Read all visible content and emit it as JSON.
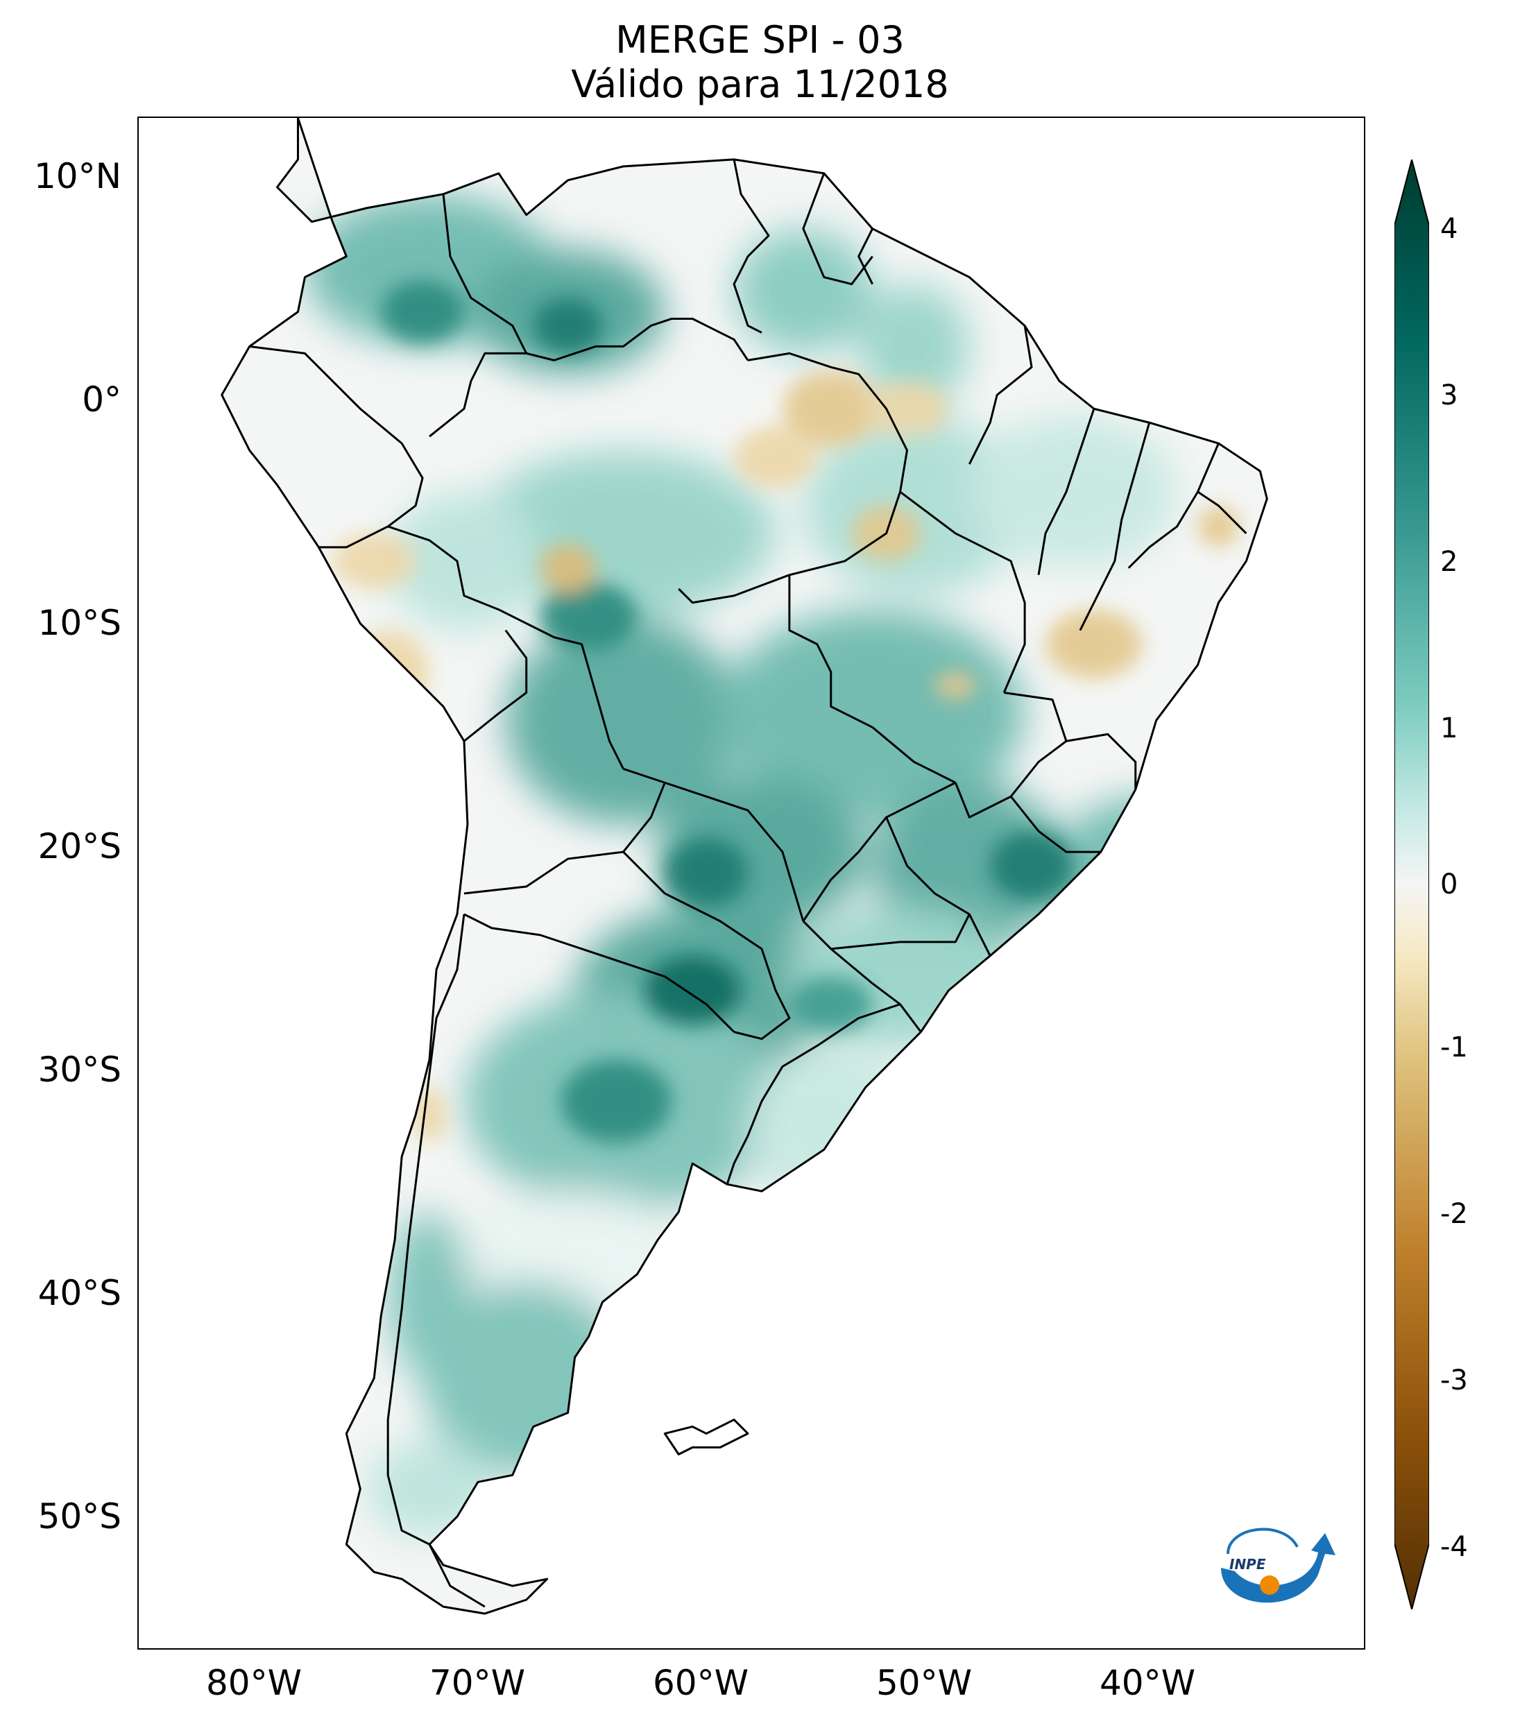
{
  "title": {
    "line1": "MERGE   SPI - 03",
    "line2": "Válido para 11/2018"
  },
  "latitude_labels": [
    "10°N",
    "0°",
    "10°S",
    "20°S",
    "30°S",
    "40°S",
    "50°S"
  ],
  "longitude_labels": [
    "80°W",
    "70°W",
    "60°W",
    "50°W",
    "40°W"
  ],
  "colorbar": {
    "tick_labels": [
      "4",
      "3",
      "2",
      "1",
      "0",
      "-1",
      "-2",
      "-3",
      "-4"
    ],
    "colors": {
      "max": "#003c30",
      "high": "#01665e",
      "mid_high": "#35978f",
      "low_high": "#80cdc1",
      "near_zero_pos": "#c7eae5",
      "zero": "#f5f5f5",
      "near_zero_neg": "#f6e8c3",
      "low_neg": "#dfc27d",
      "mid_neg": "#bf812d",
      "high_neg": "#8c510a",
      "min": "#543005"
    }
  },
  "logo": {
    "text": "INPE"
  }
}
